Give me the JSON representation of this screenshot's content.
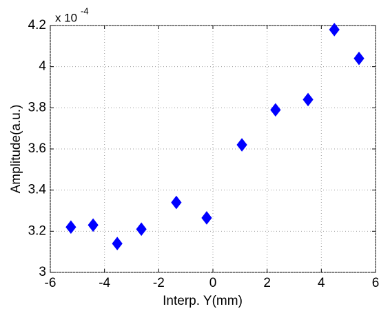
{
  "chart_data": {
    "type": "scatter",
    "x_label": "Interp. Y(mm)",
    "y_label": "Amplitude(a.u.)",
    "y_multiplier": {
      "base": "x 10",
      "exponent": "-4"
    },
    "x": [
      -5.24,
      -4.42,
      -3.53,
      -2.64,
      -1.35,
      -0.23,
      1.07,
      2.31,
      3.51,
      4.48,
      5.39
    ],
    "values": [
      3.22,
      3.23,
      3.14,
      3.21,
      3.34,
      3.265,
      3.62,
      3.79,
      3.84,
      4.18,
      4.04
    ],
    "color": "#0000ff",
    "xlim": [
      -6,
      6
    ],
    "xticks": [
      -6,
      -4,
      -2,
      0,
      2,
      4,
      6
    ],
    "ylim": [
      3,
      4.2
    ],
    "yticks": [
      3,
      3.2,
      3.4,
      3.6,
      3.8,
      4,
      4.2
    ],
    "grid": true
  }
}
